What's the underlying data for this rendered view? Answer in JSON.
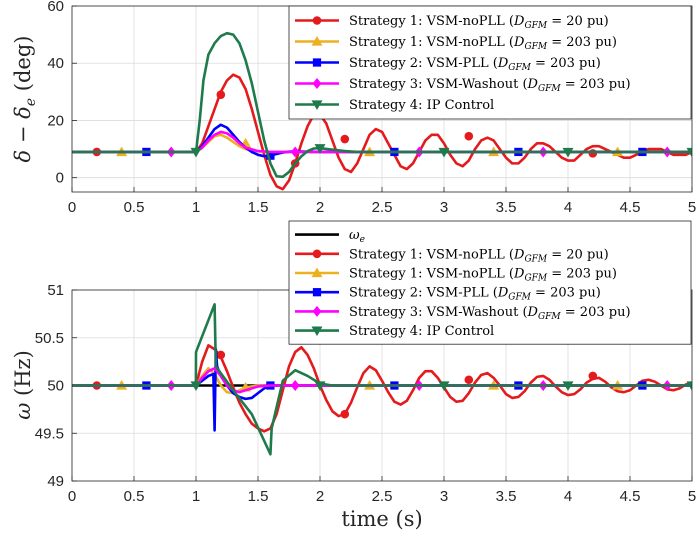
{
  "chart_data": [
    {
      "type": "line",
      "ylabel": "δ − δ_e (deg)",
      "xlabel": "",
      "xlim": [
        0,
        5
      ],
      "ylim": [
        -5,
        60
      ],
      "xticks": [
        0,
        0.5,
        1,
        1.5,
        2,
        2.5,
        3,
        3.5,
        4,
        4.5,
        5
      ],
      "xtick_labels": [
        "0",
        "0.5",
        "1",
        "1.5",
        "2",
        "2.5",
        "3",
        "3.5",
        "4",
        "4.5",
        "5"
      ],
      "yticks": [
        0,
        20,
        40,
        60
      ],
      "ytick_labels": [
        "0",
        "20",
        "40",
        "60"
      ],
      "grid": true,
      "legend_position": "top-right",
      "series": [
        {
          "name": "Strategy 1: VSM-noPLL (D_GFM = 20 pu)",
          "legend_prefix": "Strategy 1: VSM-noPLL (",
          "legend_sym": "D",
          "legend_sub": "GFM",
          "legend_suffix": " = 20 pu)",
          "color": "#e41a1c",
          "marker": "circle",
          "x": [
            0,
            0.2,
            0.5,
            0.8,
            1.0,
            1.05,
            1.1,
            1.15,
            1.2,
            1.25,
            1.3,
            1.35,
            1.4,
            1.45,
            1.5,
            1.55,
            1.6,
            1.65,
            1.7,
            1.75,
            1.8,
            1.85,
            1.9,
            1.95,
            2.0,
            2.05,
            2.1,
            2.15,
            2.2,
            2.25,
            2.3,
            2.35,
            2.4,
            2.45,
            2.5,
            2.55,
            2.6,
            2.65,
            2.7,
            2.75,
            2.8,
            2.85,
            2.9,
            2.95,
            3.0,
            3.05,
            3.1,
            3.15,
            3.2,
            3.25,
            3.3,
            3.35,
            3.4,
            3.45,
            3.5,
            3.55,
            3.6,
            3.65,
            3.7,
            3.75,
            3.8,
            3.85,
            3.9,
            3.95,
            4.0,
            4.05,
            4.1,
            4.15,
            4.2,
            4.25,
            4.3,
            4.35,
            4.4,
            4.45,
            4.5,
            4.55,
            4.6,
            4.65,
            4.7,
            4.75,
            4.8,
            4.85,
            4.9,
            4.95,
            5.0
          ],
          "values": [
            9,
            9,
            9,
            9,
            9,
            12,
            18,
            24,
            30,
            34,
            36,
            35,
            31,
            24,
            16,
            8,
            1,
            -3,
            -4,
            -1,
            5,
            12,
            18,
            22,
            22,
            19,
            13,
            7,
            3,
            2,
            5,
            10,
            15,
            17,
            16,
            12,
            8,
            4,
            3,
            5,
            9,
            13,
            15,
            15,
            12,
            8,
            5,
            4,
            6,
            10,
            13,
            14,
            13,
            10,
            7,
            5,
            5,
            7,
            10,
            12,
            12,
            11,
            9,
            7,
            6,
            6,
            8,
            10,
            11,
            11,
            10,
            9,
            8,
            7,
            7,
            8,
            9,
            10,
            10,
            10,
            9,
            8,
            8,
            8,
            9
          ],
          "marker_x": [
            0.2,
            1.2,
            1.8,
            2.2,
            3.2,
            4.2
          ],
          "marker_y": [
            9,
            29,
            5,
            13.5,
            14.5,
            8.5
          ]
        },
        {
          "name": "Strategy 1: VSM-noPLL (D_GFM = 203 pu)",
          "legend_prefix": "Strategy 1: VSM-noPLL (",
          "legend_sym": "D",
          "legend_sub": "GFM",
          "legend_suffix": " = 203 pu)",
          "color": "#edb120",
          "marker": "triangle-up",
          "x": [
            0,
            1.0,
            1.05,
            1.1,
            1.15,
            1.2,
            1.25,
            1.3,
            1.35,
            1.4,
            1.5,
            1.6,
            1.7,
            5.0
          ],
          "values": [
            9,
            9,
            10.5,
            12.5,
            14.5,
            15,
            14,
            12.5,
            11,
            10,
            9.2,
            9,
            9,
            9
          ],
          "marker_x": [
            0.4,
            1.4,
            2.4,
            3.4,
            4.4
          ],
          "marker_y": [
            9,
            12,
            9,
            9,
            9
          ]
        },
        {
          "name": "Strategy 2: VSM-PLL (D_GFM = 203 pu)",
          "legend_prefix": "Strategy 2: VSM-PLL (",
          "legend_sym": "D",
          "legend_sub": "GFM",
          "legend_suffix": " = 203 pu)",
          "color": "#0000ff",
          "marker": "square",
          "x": [
            0,
            1.0,
            1.05,
            1.1,
            1.15,
            1.2,
            1.25,
            1.3,
            1.35,
            1.4,
            1.45,
            1.5,
            1.55,
            1.6,
            1.65,
            1.7,
            1.75,
            1.8,
            1.9,
            2.0,
            5.0
          ],
          "values": [
            9,
            9,
            11,
            14,
            17,
            18.5,
            17.5,
            15,
            12.5,
            10.5,
            9,
            8,
            7.5,
            7.8,
            8.3,
            8.8,
            9.1,
            9.2,
            9.1,
            9,
            9
          ],
          "marker_x": [
            0.6,
            1.6,
            2.6,
            3.6,
            4.6
          ],
          "marker_y": [
            9,
            7.7,
            9,
            9,
            9
          ]
        },
        {
          "name": "Strategy 3: VSM-Washout (D_GFM = 203 pu)",
          "legend_prefix": "Strategy 3: VSM-Washout (",
          "legend_sym": "D",
          "legend_sub": "GFM",
          "legend_suffix": " = 203 pu)",
          "color": "#ff00ff",
          "marker": "diamond",
          "x": [
            0,
            1.0,
            1.05,
            1.1,
            1.15,
            1.2,
            1.25,
            1.3,
            1.35,
            1.4,
            1.5,
            1.6,
            1.7,
            1.8,
            5.0
          ],
          "values": [
            9,
            9,
            10.5,
            13,
            15,
            16,
            15.5,
            14,
            12,
            10.5,
            9.3,
            9,
            9,
            9,
            9
          ],
          "marker_x": [
            0.8,
            1.8,
            2.8,
            3.8,
            4.8
          ],
          "marker_y": [
            9,
            9,
            9,
            9,
            9
          ]
        },
        {
          "name": "Strategy 4: IP Control",
          "legend_prefix": "Strategy 4: IP Control",
          "legend_sym": "",
          "legend_sub": "",
          "legend_suffix": "",
          "color": "#1f7a4c",
          "marker": "triangle-down",
          "x": [
            0,
            1.0,
            1.03,
            1.06,
            1.1,
            1.15,
            1.2,
            1.25,
            1.3,
            1.35,
            1.4,
            1.45,
            1.5,
            1.55,
            1.6,
            1.65,
            1.7,
            1.75,
            1.8,
            1.85,
            1.9,
            1.95,
            2.0,
            2.1,
            2.2,
            2.3,
            5.0
          ],
          "values": [
            9,
            9,
            20,
            34,
            43,
            47,
            49.5,
            50.5,
            50,
            47,
            41,
            33,
            23,
            13,
            5,
            0.5,
            0.3,
            2,
            5,
            7.5,
            9.3,
            10.2,
            10.3,
            9.8,
            9.3,
            9,
            9
          ],
          "marker_x": [
            1.0,
            2.0,
            3.0,
            4.0,
            5.0
          ],
          "marker_y": [
            9,
            10.3,
            9,
            9,
            9
          ]
        }
      ]
    },
    {
      "type": "line",
      "ylabel": "ω (Hz)",
      "xlabel": "time (s)",
      "xlim": [
        0,
        5
      ],
      "ylim": [
        49,
        51
      ],
      "xticks": [
        0,
        0.5,
        1,
        1.5,
        2,
        2.5,
        3,
        3.5,
        4,
        4.5,
        5
      ],
      "xtick_labels": [
        "0",
        "0.5",
        "1",
        "1.5",
        "2",
        "2.5",
        "3",
        "3.5",
        "4",
        "4.5",
        "5"
      ],
      "yticks": [
        49,
        49.5,
        50,
        50.5,
        51
      ],
      "ytick_labels": [
        "49",
        "49.5",
        "50",
        "50.5",
        "51"
      ],
      "grid": true,
      "legend_position": "top-right",
      "series": [
        {
          "name": "ω_e",
          "legend_prefix": "",
          "legend_sym": "ω",
          "legend_sub": "e",
          "legend_suffix": "",
          "color": "#000000",
          "marker": "none",
          "x": [
            0,
            5.0
          ],
          "values": [
            50,
            50
          ],
          "marker_x": [],
          "marker_y": []
        },
        {
          "name": "Strategy 1: VSM-noPLL (D_GFM = 20 pu)",
          "legend_prefix": "Strategy 1: VSM-noPLL (",
          "legend_sym": "D",
          "legend_sub": "GFM",
          "legend_suffix": " = 20 pu)",
          "color": "#e41a1c",
          "marker": "circle",
          "x": [
            0,
            1.0,
            1.05,
            1.1,
            1.15,
            1.2,
            1.25,
            1.3,
            1.35,
            1.4,
            1.45,
            1.5,
            1.55,
            1.6,
            1.65,
            1.7,
            1.75,
            1.8,
            1.85,
            1.9,
            1.95,
            2.0,
            2.05,
            2.1,
            2.15,
            2.2,
            2.25,
            2.3,
            2.35,
            2.4,
            2.45,
            2.5,
            2.55,
            2.6,
            2.65,
            2.7,
            2.75,
            2.8,
            2.85,
            2.9,
            2.95,
            3.0,
            3.05,
            3.1,
            3.15,
            3.2,
            3.25,
            3.3,
            3.35,
            3.4,
            3.45,
            3.5,
            3.55,
            3.6,
            3.65,
            3.7,
            3.75,
            3.8,
            3.85,
            3.9,
            3.95,
            4.0,
            4.05,
            4.1,
            4.15,
            4.2,
            4.25,
            4.3,
            4.35,
            4.4,
            4.45,
            4.5,
            4.55,
            4.6,
            4.65,
            4.7,
            4.75,
            4.8,
            4.85,
            4.9,
            4.95,
            5.0
          ],
          "values": [
            50,
            50,
            50.25,
            50.42,
            50.38,
            50.3,
            50.15,
            49.98,
            49.82,
            49.7,
            49.6,
            49.55,
            49.52,
            49.55,
            49.7,
            49.95,
            50.2,
            50.35,
            50.4,
            50.32,
            50.18,
            50.0,
            49.85,
            49.73,
            49.68,
            49.7,
            49.82,
            49.98,
            50.13,
            50.2,
            50.16,
            50.05,
            49.93,
            49.83,
            49.8,
            49.84,
            49.95,
            50.08,
            50.15,
            50.15,
            50.08,
            49.98,
            49.88,
            49.83,
            49.84,
            49.92,
            50.03,
            50.11,
            50.13,
            50.08,
            50.0,
            49.91,
            49.87,
            49.88,
            49.94,
            50.03,
            50.09,
            50.1,
            50.06,
            49.99,
            49.93,
            49.9,
            49.91,
            49.96,
            50.03,
            50.07,
            50.08,
            50.04,
            49.98,
            49.94,
            49.93,
            49.95,
            50.0,
            50.05,
            50.06,
            50.04,
            50.0,
            49.96,
            49.95,
            49.97,
            50.01,
            50.03
          ],
          "marker_x": [
            0.2,
            1.2,
            2.2,
            3.2,
            4.2
          ],
          "marker_y": [
            50,
            50.32,
            49.7,
            50.06,
            50.1
          ]
        },
        {
          "name": "Strategy 1: VSM-noPLL (D_GFM = 203 pu)",
          "legend_prefix": "Strategy 1: VSM-noPLL (",
          "legend_sym": "D",
          "legend_sub": "GFM",
          "legend_suffix": " = 203 pu)",
          "color": "#edb120",
          "marker": "triangle-up",
          "x": [
            0,
            1.0,
            1.05,
            1.1,
            1.15,
            1.2,
            1.25,
            1.3,
            1.35,
            1.4,
            1.5,
            1.6,
            5.0
          ],
          "values": [
            50,
            50,
            50.1,
            50.18,
            50.12,
            50.0,
            49.93,
            49.92,
            49.95,
            49.98,
            50.0,
            50.0,
            50.0
          ],
          "marker_x": [
            0.4,
            1.4,
            2.4,
            3.4,
            4.4
          ],
          "marker_y": [
            50,
            49.98,
            50,
            50,
            50
          ]
        },
        {
          "name": "Strategy 2: VSM-PLL (D_GFM = 203 pu)",
          "legend_prefix": "Strategy 2: VSM-PLL (",
          "legend_sym": "D",
          "legend_sub": "GFM",
          "legend_suffix": " = 203 pu)",
          "color": "#0000ff",
          "marker": "square",
          "x": [
            0,
            1.0,
            1.05,
            1.1,
            1.14,
            1.15,
            1.16,
            1.17,
            1.2,
            1.25,
            1.3,
            1.35,
            1.4,
            1.45,
            1.5,
            1.55,
            1.6,
            1.7,
            5.0
          ],
          "values": [
            50,
            50,
            50.05,
            50.1,
            50.12,
            49.53,
            50.38,
            50.2,
            50.1,
            50.0,
            49.92,
            49.88,
            49.86,
            49.87,
            49.92,
            49.97,
            50.0,
            50.0,
            50.0
          ],
          "marker_x": [
            0.6,
            1.6,
            2.6,
            3.6,
            4.6
          ],
          "marker_y": [
            50,
            50,
            50,
            50,
            50
          ]
        },
        {
          "name": "Strategy 3: VSM-Washout (D_GFM = 203 pu)",
          "legend_prefix": "Strategy 3: VSM-Washout (",
          "legend_sym": "D",
          "legend_sub": "GFM",
          "legend_suffix": " = 203 pu)",
          "color": "#ff00ff",
          "marker": "diamond",
          "x": [
            0,
            1.0,
            1.05,
            1.1,
            1.15,
            1.2,
            1.25,
            1.3,
            1.35,
            1.4,
            1.5,
            1.6,
            5.0
          ],
          "values": [
            50,
            50,
            50.08,
            50.15,
            50.18,
            50.1,
            50.0,
            49.95,
            49.93,
            49.95,
            49.99,
            50.0,
            50.0
          ],
          "marker_x": [
            0.8,
            1.8,
            2.8,
            3.8,
            4.8
          ],
          "marker_y": [
            50,
            50,
            50,
            50,
            50
          ]
        },
        {
          "name": "Strategy 4: IP Control",
          "legend_prefix": "Strategy 4: IP Control",
          "legend_sym": "",
          "legend_sub": "",
          "legend_suffix": "",
          "color": "#1f7a4c",
          "marker": "triangle-down",
          "x": [
            0,
            0.999,
            1.0,
            1.15,
            1.16,
            1.3,
            1.45,
            1.6,
            1.61,
            1.7,
            1.8,
            1.9,
            2.0,
            2.1,
            5.0
          ],
          "values": [
            50,
            50,
            50.35,
            50.85,
            50.2,
            49.95,
            49.7,
            49.28,
            49.55,
            50.05,
            50.16,
            50.1,
            50.02,
            50.0,
            50.0
          ],
          "marker_x": [
            1.0,
            2.0,
            3.0,
            4.0,
            5.0
          ],
          "marker_y": [
            50,
            50,
            50,
            50,
            50
          ]
        }
      ]
    }
  ]
}
